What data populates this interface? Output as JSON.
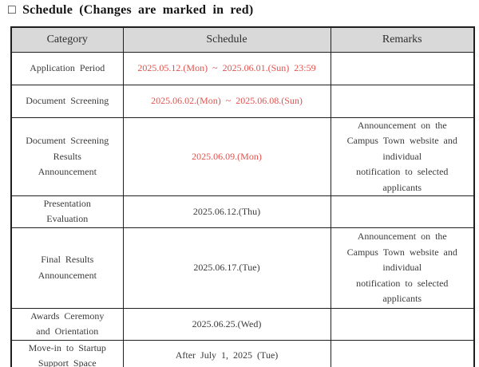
{
  "title": "□ Schedule (Changes are marked in red)",
  "colors": {
    "red": "#e2524e",
    "header_bg": "#d9d9d9",
    "border": "#1f1f1f",
    "text": "#3b3b3b"
  },
  "table": {
    "headers": [
      "Category",
      "Schedule",
      "Remarks"
    ],
    "rows": [
      {
        "category": "Application Period",
        "schedule": "2025.05.12.(Mon) ~ 2025.06.01.(Sun) 23:59",
        "schedule_red": true,
        "remarks": ""
      },
      {
        "category": "Document Screening",
        "schedule": "2025.06.02.(Mon) ~ 2025.06.08.(Sun)",
        "schedule_red": true,
        "remarks": ""
      },
      {
        "category": "Document Screening\nResults\nAnnouncement",
        "schedule": "2025.06.09.(Mon)",
        "schedule_red": true,
        "remarks": "Announcement on the\nCampus Town website and\nindividual\nnotification to selected\napplicants"
      },
      {
        "category": "Presentation\nEvaluation",
        "schedule": "2025.06.12.(Thu)",
        "schedule_red": false,
        "remarks": ""
      },
      {
        "category": "Final Results\nAnnouncement",
        "schedule": "2025.06.17.(Tue)",
        "schedule_red": false,
        "remarks": "Announcement on the\nCampus Town website and\nindividual\nnotification to selected\napplicants"
      },
      {
        "category": "Awards Ceremony\nand Orientation",
        "schedule": "2025.06.25.(Wed)",
        "schedule_red": false,
        "remarks": ""
      },
      {
        "category": "Move-in to Startup\nSupport Space",
        "schedule": "After July 1, 2025 (Tue)",
        "schedule_red": false,
        "remarks": ""
      }
    ]
  }
}
